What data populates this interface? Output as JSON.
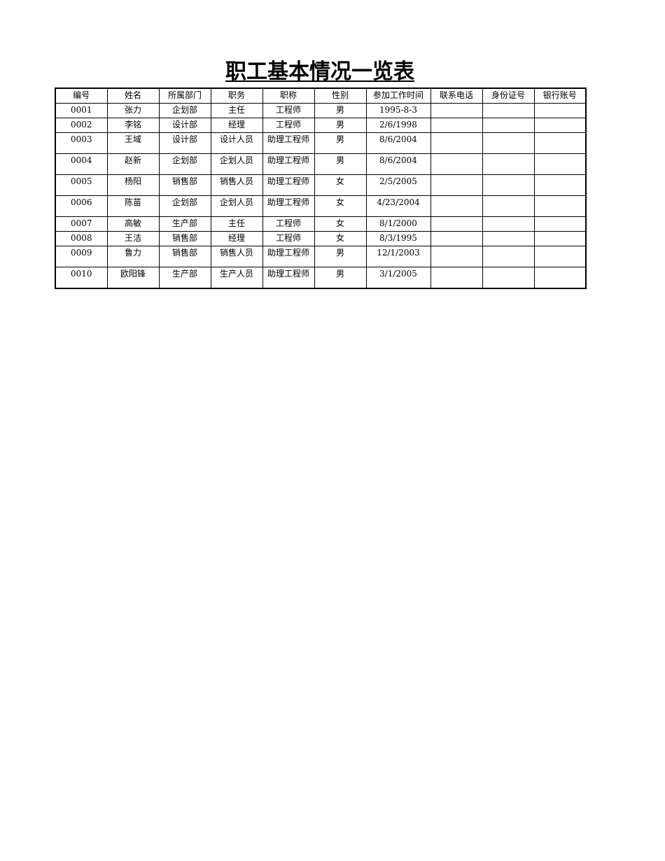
{
  "title": "职工基本情况一览表",
  "headers": [
    "编号",
    "姓名",
    "所属部门",
    "职务",
    "职称",
    "性别",
    "参加工作时间",
    "联系电话",
    "身份证号",
    "银行账号"
  ],
  "rows": [
    [
      "0001",
      "张力",
      "企划部",
      "主任",
      "工程师",
      "男",
      "1995-8-3",
      "",
      "",
      ""
    ],
    [
      "0002",
      "李铭",
      "设计部",
      "经理",
      "工程师",
      "男",
      "2/6/1998",
      "",
      "",
      ""
    ],
    [
      "0003",
      "王域",
      "设计部",
      "设计人员",
      "助理工程师",
      "男",
      "8/6/2004",
      "",
      "",
      ""
    ],
    [
      "0004",
      "赵新",
      "企划部",
      "企划人员",
      "助理工程师",
      "男",
      "8/6/2004",
      "",
      "",
      ""
    ],
    [
      "0005",
      "杨阳",
      "销售部",
      "销售人员",
      "助理工程师",
      "女",
      "2/5/2005",
      "",
      "",
      ""
    ],
    [
      "0006",
      "陈苗",
      "企划部",
      "企划人员",
      "助理工程师",
      "女",
      "4/23/2004",
      "",
      "",
      ""
    ],
    [
      "0007",
      "高敏",
      "生产部",
      "主任",
      "工程师",
      "女",
      "8/1/2000",
      "",
      "",
      ""
    ],
    [
      "0008",
      "王洁",
      "销售部",
      "经理",
      "工程师",
      "女",
      "8/3/1995",
      "",
      "",
      ""
    ],
    [
      "0009",
      "鲁力",
      "销售部",
      "销售人员",
      "助理工程师",
      "男",
      "12/1/2003",
      "",
      "",
      ""
    ],
    [
      "0010",
      "欧阳锋",
      "生产部",
      "生产人员",
      "助理工程师",
      "男",
      "3/1/2005",
      "",
      "",
      ""
    ]
  ]
}
